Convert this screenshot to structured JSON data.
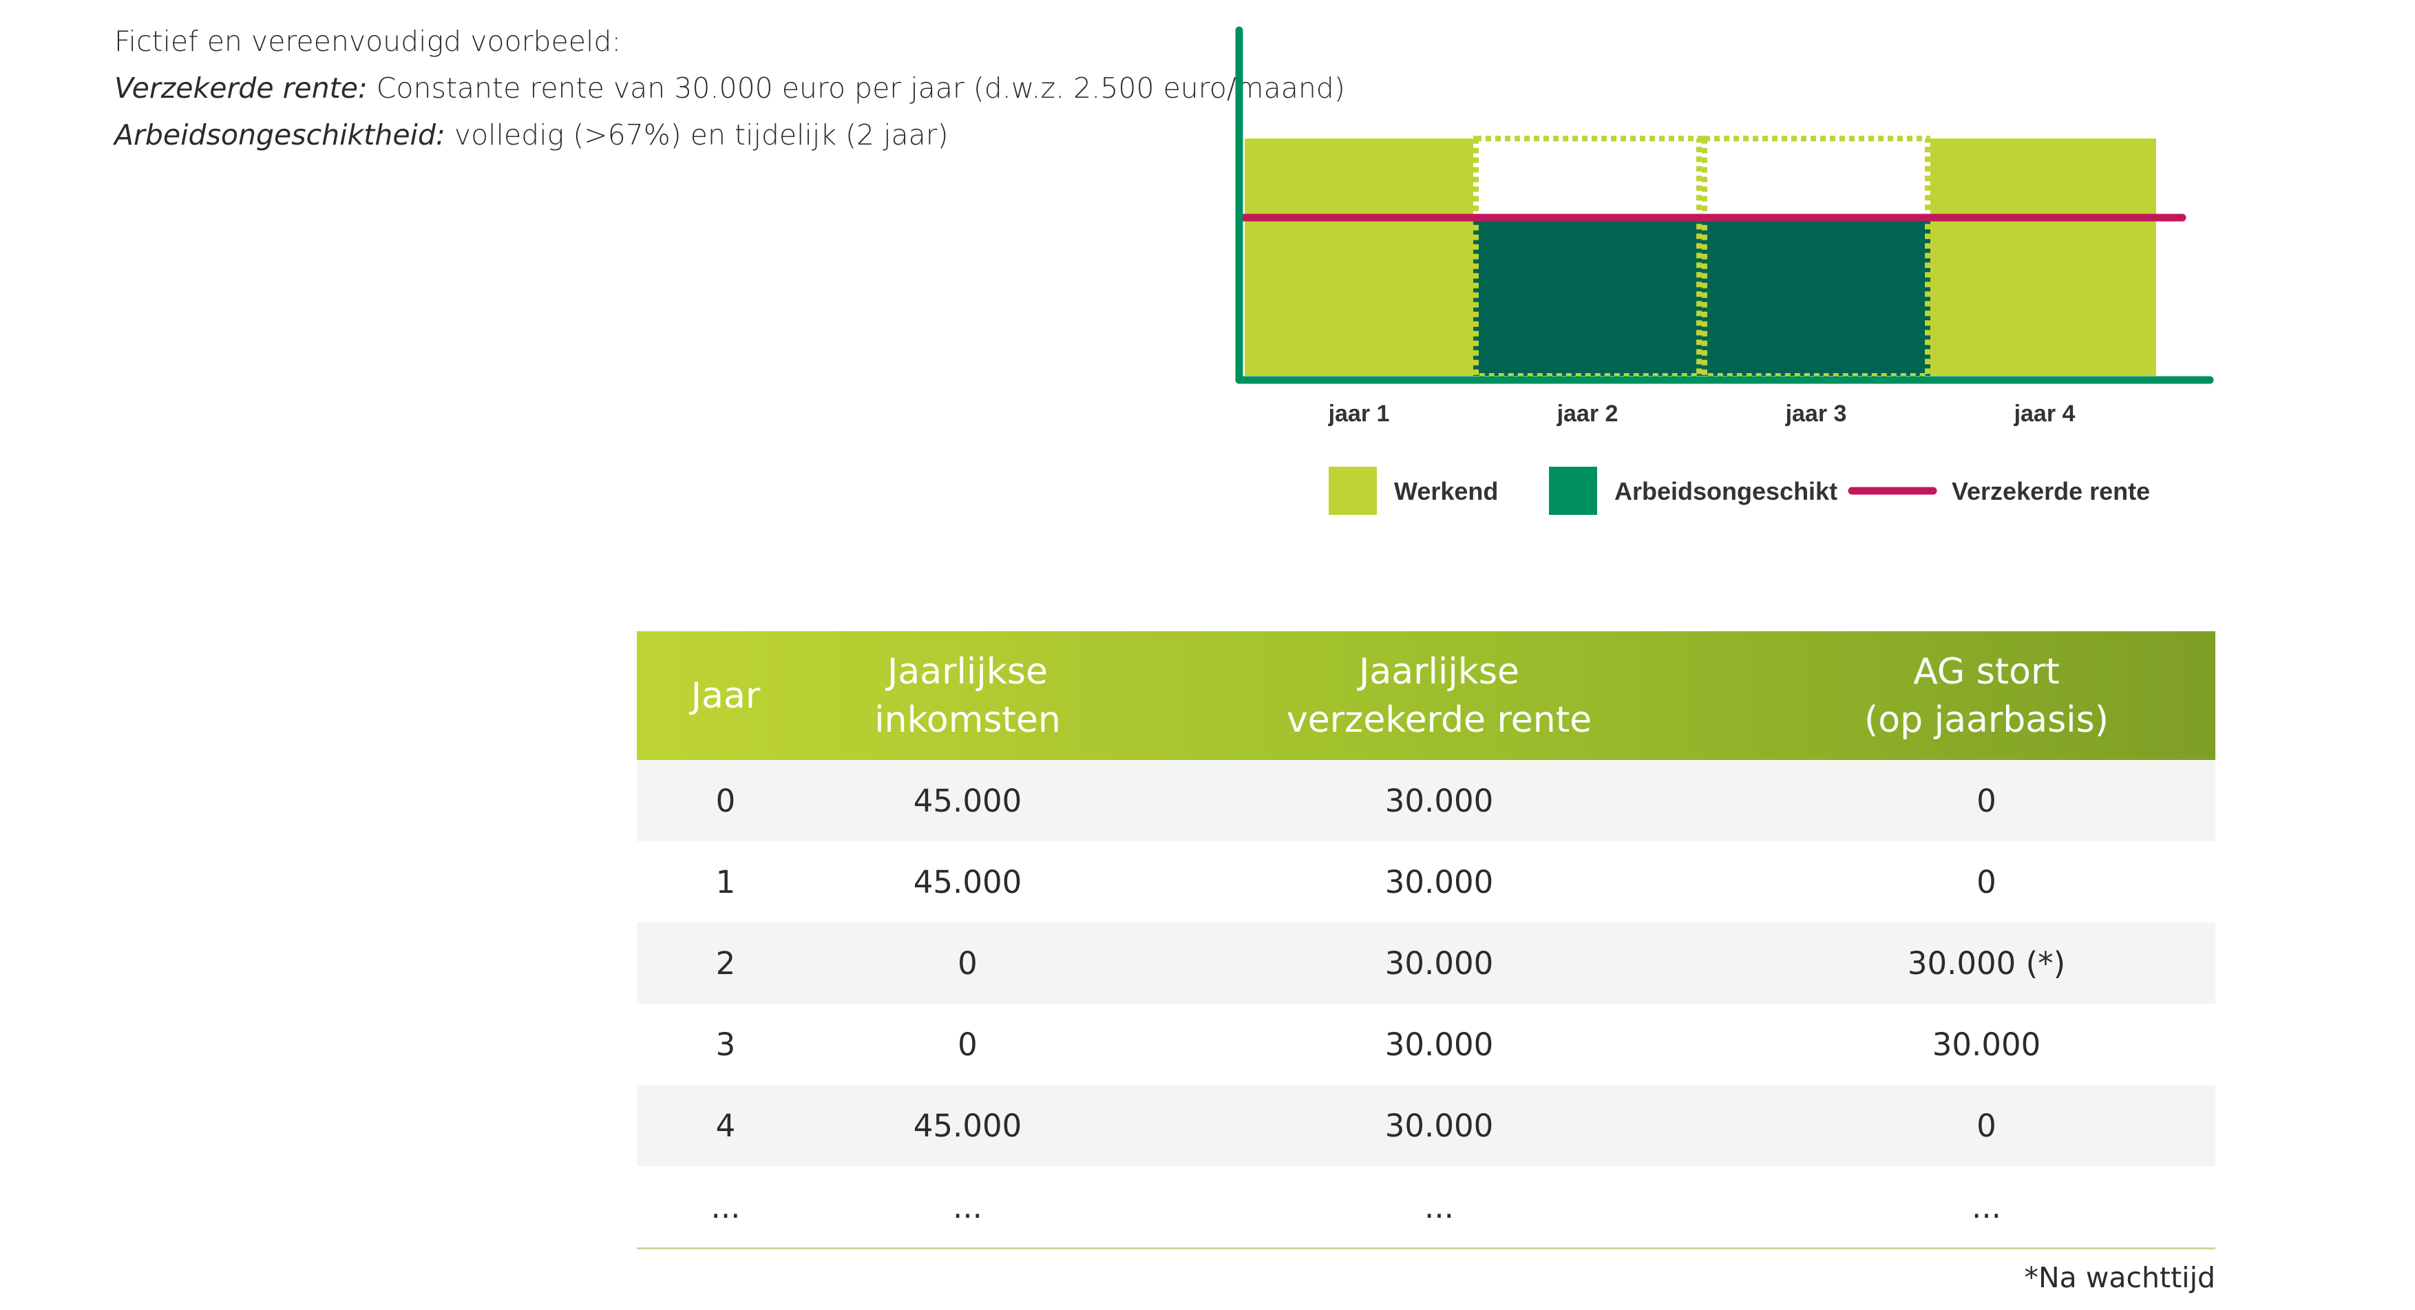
{
  "intro": {
    "line1": "Fictief en vereenvoudigd voorbeeld:",
    "line2_label": "Verzekerde rente:",
    "line2_text": " Constante rente van 30.000 euro per jaar (d.w.z. 2.500 euro/maand)",
    "line3_label": "Arbeidsongeschiktheid:",
    "line3_text": " volledig (>67%) en tijdelijk (2 jaar)"
  },
  "chart_data": {
    "type": "bar",
    "categories": [
      "jaar 1",
      "jaar 2",
      "jaar 3",
      "jaar 4"
    ],
    "series": [
      {
        "name": "Werkend",
        "values": [
          45000,
          0,
          0,
          45000
        ],
        "color": "#bfd434"
      },
      {
        "name": "Arbeidsongeschikt",
        "values": [
          0,
          30000,
          30000,
          0
        ],
        "color": "#006450"
      }
    ],
    "dashed_outline": {
      "categories": [
        "jaar 2",
        "jaar 3"
      ],
      "value": 45000,
      "color": "#bfd434"
    },
    "reference_line": {
      "name": "Verzekerde rente",
      "value": 30000,
      "color": "#c2185b"
    },
    "ylim": [
      0,
      65000
    ],
    "grid": false,
    "legend_position": "bottom",
    "axis_color": "#009060",
    "legend": [
      {
        "label": "Werkend",
        "kind": "swatch",
        "color": "#bfd434"
      },
      {
        "label": "Arbeidsongeschikt",
        "kind": "swatch",
        "color": "#009060"
      },
      {
        "label": "Verzekerde rente",
        "kind": "line",
        "color": "#c2185b"
      }
    ]
  },
  "table": {
    "headers": [
      "Jaar",
      "Jaarlijkse\ninkomsten",
      "Jaarlijkse\nverzekerde rente",
      "AG stort\n(op jaarbasis)"
    ],
    "rows": [
      [
        "0",
        "45.000",
        "30.000",
        "0"
      ],
      [
        "1",
        "45.000",
        "30.000",
        "0"
      ],
      [
        "2",
        "0",
        "30.000",
        "30.000 (*)"
      ],
      [
        "3",
        "0",
        "30.000",
        "30.000"
      ],
      [
        "4",
        "45.000",
        "30.000",
        "0"
      ],
      [
        "...",
        "...",
        "...",
        "..."
      ]
    ]
  },
  "footnote": "*Na wachttijd"
}
